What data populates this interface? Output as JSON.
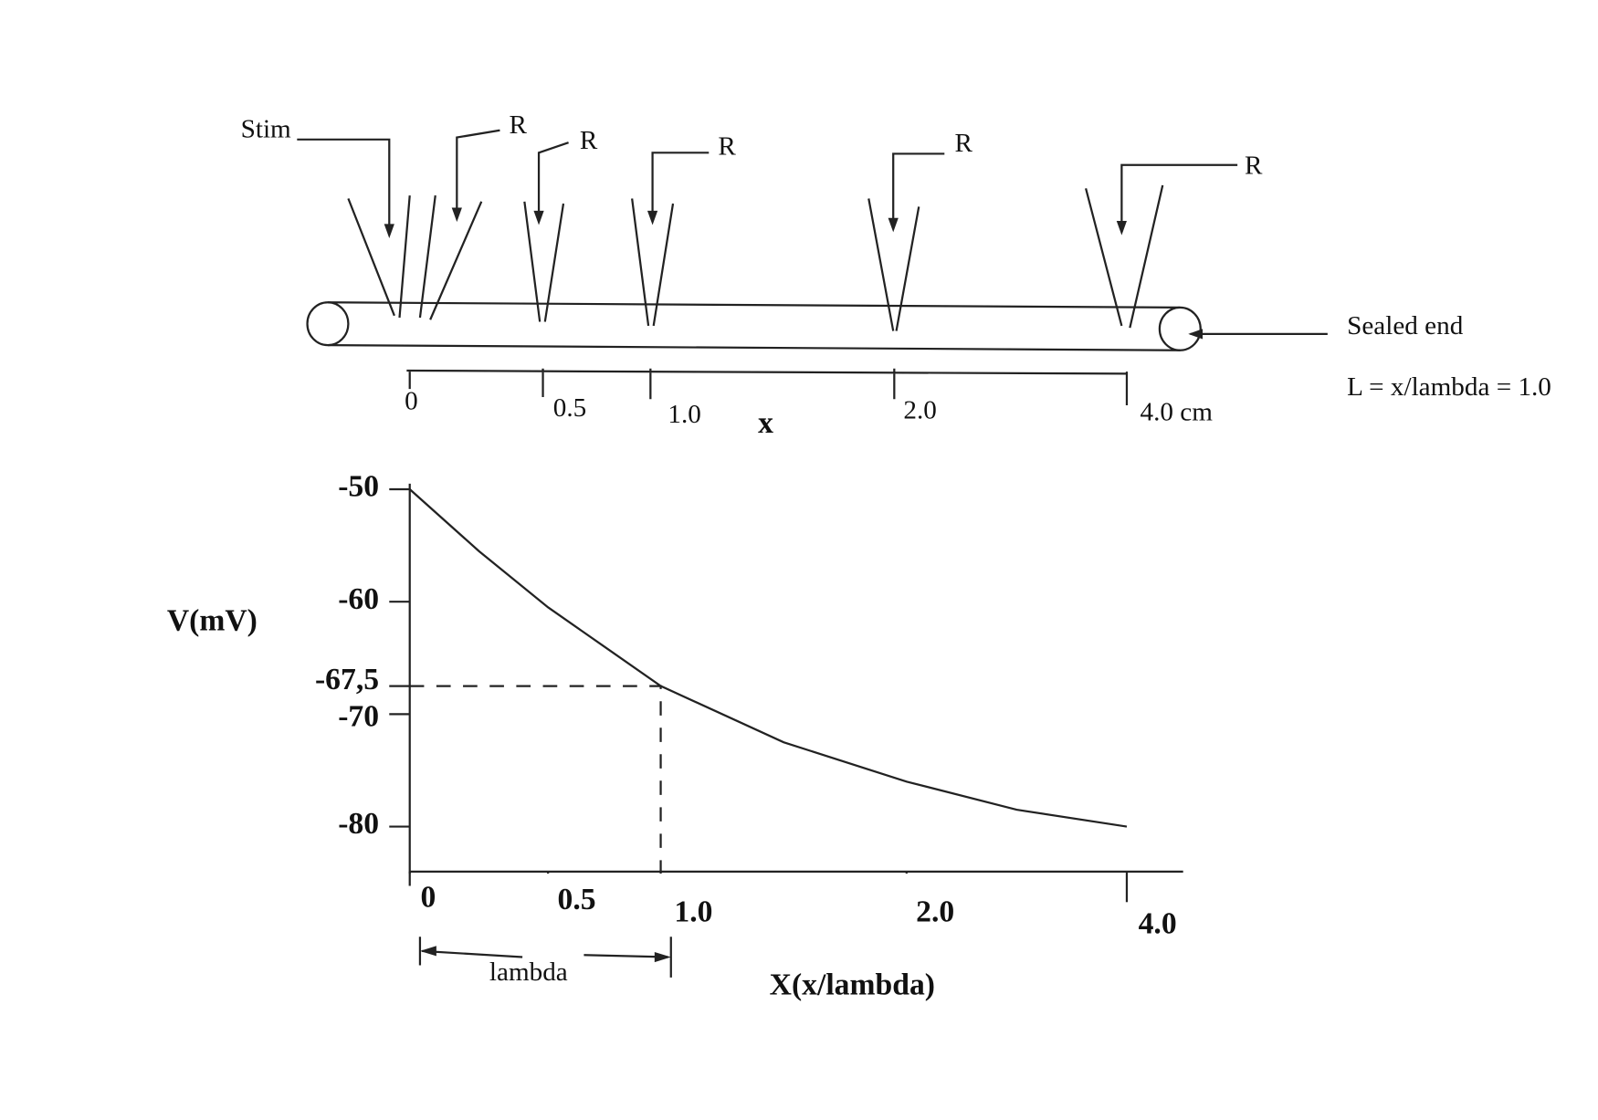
{
  "diagram": {
    "stim_label": "Stim",
    "recording_labels": [
      "R",
      "R",
      "R",
      "R",
      "R"
    ],
    "sealed_end_label": "Sealed end",
    "length_note": "L = x/lambda = 1.0",
    "scale_labels": [
      "0",
      "0.5",
      "1.0",
      "2.0",
      "4.0 cm"
    ],
    "scale_axis_label": "x"
  },
  "chart_data": {
    "type": "line",
    "y_label": "V(mV)",
    "x_label": "X(x/lambda)",
    "annotation": "lambda",
    "x": [
      0,
      0.25,
      0.5,
      0.75,
      1,
      1.5,
      2,
      3,
      4
    ],
    "series": [
      {
        "name": "V",
        "color": "#222222",
        "values": [
          -50,
          -55.5,
          -60.5,
          -64,
          -67.5,
          -72.5,
          -76,
          -78.5,
          -80
        ]
      }
    ],
    "xticks": [
      0,
      0.5,
      {
        "value": 1,
        "label": "1.0"
      },
      {
        "value": 2,
        "label": "2.0"
      },
      {
        "value": 4,
        "label": "4.0"
      }
    ],
    "ylim": [
      -84,
      -49.5
    ],
    "yticks": [
      -50,
      -60,
      {
        "value": -67.5,
        "label": "-67,5"
      },
      -70,
      -80
    ],
    "marker": {
      "x": 1,
      "y": -67.5
    }
  }
}
